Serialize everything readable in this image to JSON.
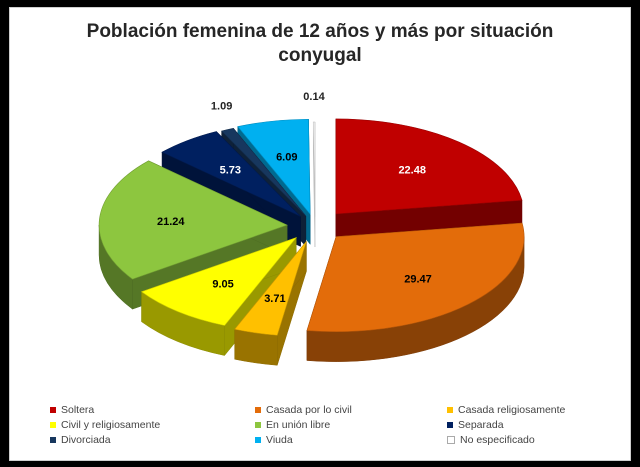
{
  "chart_data": {
    "type": "pie",
    "title": "Población femenina de 12 años y más por situación conyugal",
    "categories": [
      "Soltera",
      "Casada por lo civil",
      "Casada religiosamente",
      "Civil y religiosamente",
      "En unión libre",
      "Separada",
      "Divorciada",
      "Viuda",
      "No especificado"
    ],
    "values": [
      22.48,
      29.47,
      3.71,
      9.05,
      21.24,
      5.73,
      1.09,
      6.09,
      0.14
    ],
    "value_labels": [
      "22.48",
      "29.47",
      "3.71",
      "9.05",
      "21.24",
      "5.73",
      "1.09",
      "6.09",
      "0.14"
    ],
    "colors": [
      "#c00000",
      "#e36c0a",
      "#ffc000",
      "#ffff00",
      "#8dc63f",
      "#002060",
      "#17375e",
      "#00b0f0",
      "#ffffff"
    ],
    "legend_position": "bottom",
    "style": "3d-exploded"
  }
}
